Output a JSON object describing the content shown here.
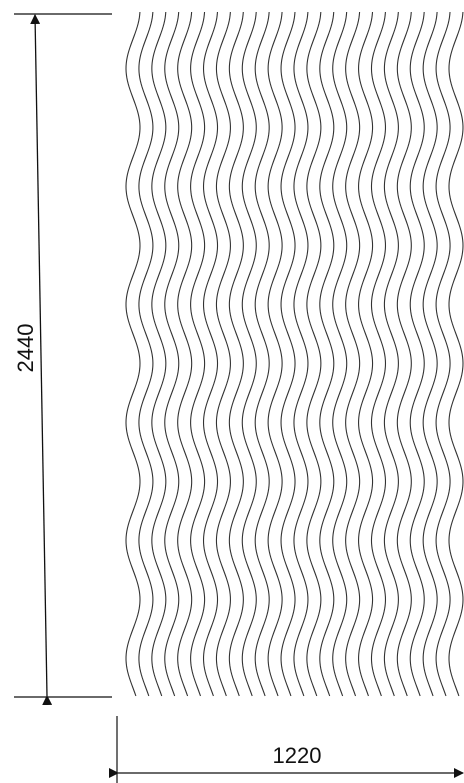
{
  "diagram": {
    "height_dimension": "2440",
    "width_dimension": "1220",
    "line_color": "#111111",
    "wave_line_color": "#333333"
  }
}
